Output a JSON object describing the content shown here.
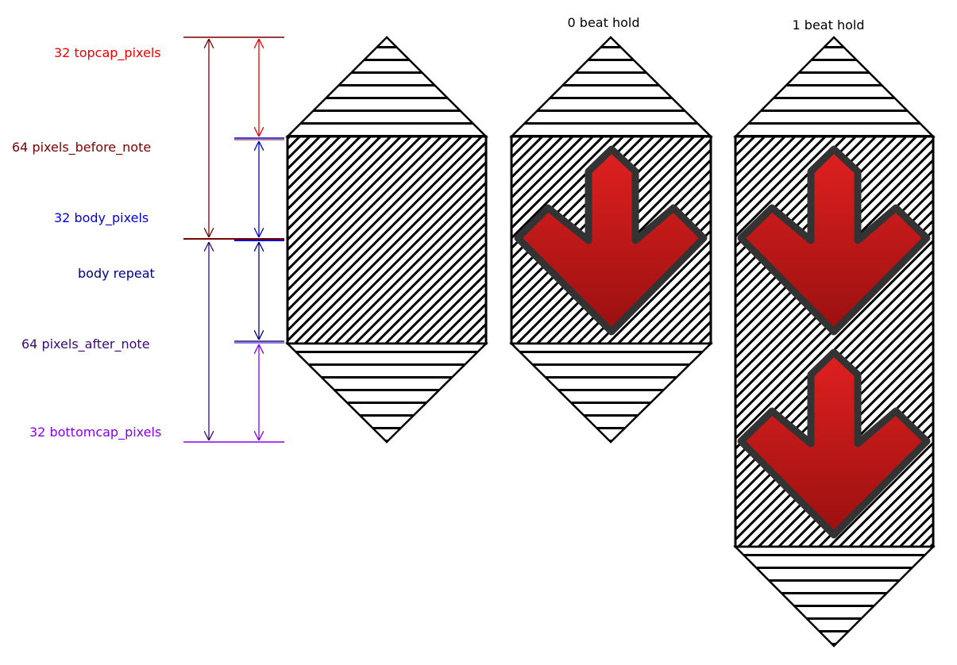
{
  "labels": {
    "topcap": "32 topcap_pixels",
    "before_note": "64 pixels_before_note",
    "body_pixels": "32 body_pixels",
    "body_repeat": "body repeat",
    "after_note": "64 pixels_after_note",
    "bottomcap": "32 bottomcap_pixels",
    "zero_beat": "0 beat hold",
    "one_beat": "1 beat hold"
  },
  "colors": {
    "topcap": "#ee0000",
    "before_note": "#7a0000",
    "body_pixels": "#0000dd",
    "body_repeat": "#000080",
    "after_note": "#3a0a70",
    "bottomcap": "#8800ee",
    "arrow_top": "#e02020",
    "arrow_bottom": "#9a1010",
    "arrow_outline": "#333333"
  },
  "icons": {
    "arrow": "down-arrow-icon"
  },
  "sprites": {
    "plain": {
      "arrows": 0
    },
    "zero_beat": {
      "arrows": 1
    },
    "one_beat": {
      "arrows": 2
    }
  }
}
